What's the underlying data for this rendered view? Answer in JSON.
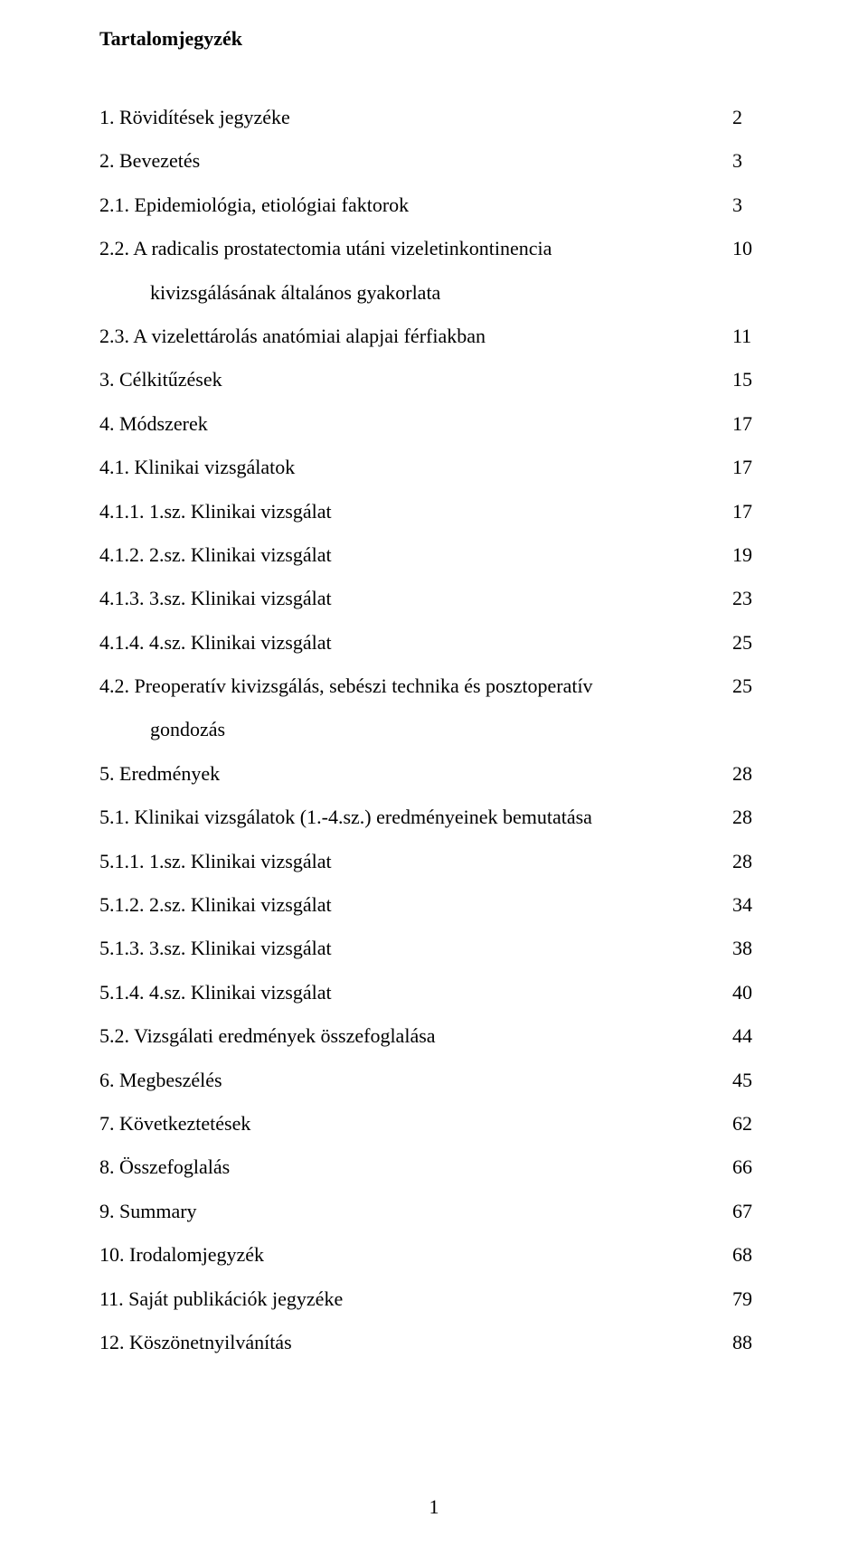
{
  "document": {
    "title": "Tartalomjegyzék",
    "page_number": "1",
    "font_family": "Times New Roman",
    "title_fontsize": 22,
    "body_fontsize": 22,
    "line_height": 2.2,
    "background_color": "#ffffff",
    "text_color": "#000000"
  },
  "toc": [
    {
      "title": "1. Rövidítések jegyzéke",
      "page": "2",
      "indent": 0
    },
    {
      "title": "2. Bevezetés",
      "page": "3",
      "indent": 0
    },
    {
      "title": "2.1. Epidemiológia, etiológiai faktorok",
      "page": "3",
      "indent": 0
    },
    {
      "title": "2.2. A radicalis prostatectomia utáni vizeletinkontinencia",
      "page": "10",
      "indent": 0
    },
    {
      "title": "kivizsgálásának általános gyakorlata",
      "page": "",
      "indent": 1
    },
    {
      "title": "2.3. A vizelettárolás anatómiai alapjai férfiakban",
      "page": "11",
      "indent": 0
    },
    {
      "title": "3. Célkitűzések",
      "page": "15",
      "indent": 0
    },
    {
      "title": "4. Módszerek",
      "page": "17",
      "indent": 0
    },
    {
      "title": "4.1. Klinikai vizsgálatok",
      "page": "17",
      "indent": 0
    },
    {
      "title": "4.1.1. 1.sz. Klinikai vizsgálat",
      "page": "17",
      "indent": 0
    },
    {
      "title": "4.1.2. 2.sz. Klinikai vizsgálat",
      "page": "19",
      "indent": 0
    },
    {
      "title": "4.1.3. 3.sz. Klinikai vizsgálat",
      "page": "23",
      "indent": 0
    },
    {
      "title": "4.1.4. 4.sz. Klinikai vizsgálat",
      "page": "25",
      "indent": 0
    },
    {
      "title": "4.2. Preoperatív kivizsgálás, sebészi technika és posztoperatív",
      "page": "25",
      "indent": 0
    },
    {
      "title": "gondozás",
      "page": "",
      "indent": 1
    },
    {
      "title": "5. Eredmények",
      "page": "28",
      "indent": 0
    },
    {
      "title": "5.1. Klinikai vizsgálatok (1.-4.sz.) eredményeinek bemutatása",
      "page": "28",
      "indent": 0
    },
    {
      "title": "5.1.1. 1.sz. Klinikai vizsgálat",
      "page": "28",
      "indent": 0
    },
    {
      "title": "5.1.2. 2.sz. Klinikai vizsgálat",
      "page": "34",
      "indent": 0
    },
    {
      "title": "5.1.3. 3.sz. Klinikai vizsgálat",
      "page": "38",
      "indent": 0
    },
    {
      "title": "5.1.4. 4.sz. Klinikai vizsgálat",
      "page": "40",
      "indent": 0
    },
    {
      "title": "5.2. Vizsgálati eredmények összefoglalása",
      "page": "44",
      "indent": 0
    },
    {
      "title": "6. Megbeszélés",
      "page": "45",
      "indent": 0
    },
    {
      "title": "7. Következtetések",
      "page": "62",
      "indent": 0
    },
    {
      "title": "8. Összefoglalás",
      "page": "66",
      "indent": 0
    },
    {
      "title": "9. Summary",
      "page": "67",
      "indent": 0
    },
    {
      "title": "10. Irodalomjegyzék",
      "page": "68",
      "indent": 0
    },
    {
      "title": "11. Saját publikációk jegyzéke",
      "page": "79",
      "indent": 0
    },
    {
      "title": "12. Köszönetnyilvánítás",
      "page": "88",
      "indent": 0
    }
  ]
}
